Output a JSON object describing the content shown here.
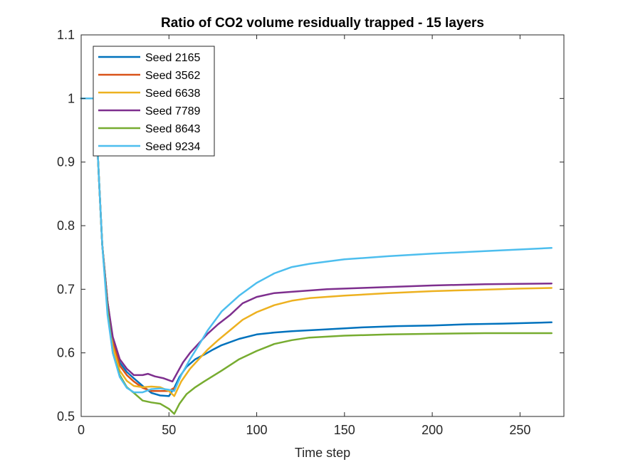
{
  "chart_data": {
    "type": "line",
    "title": "Ratio of CO2 volume residually trapped - 15 layers",
    "xlabel": "Time step",
    "ylabel": "",
    "xlim": [
      0,
      275
    ],
    "ylim": [
      0.5,
      1.1
    ],
    "xticks": [
      0,
      50,
      100,
      150,
      200,
      250
    ],
    "yticks": [
      0.5,
      0.6,
      0.7,
      0.8,
      0.9,
      1,
      1.1
    ],
    "xtick_labels": [
      "0",
      "50",
      "100",
      "150",
      "200",
      "250"
    ],
    "ytick_labels": [
      "0.5",
      "0.6",
      "0.7",
      "0.8",
      "0.9",
      "1",
      "1.1"
    ],
    "grid": false,
    "legend_position": "top-left",
    "series": [
      {
        "name": "Seed 2165",
        "color": "#0072BD",
        "points": [
          [
            0,
            1
          ],
          [
            8,
            1
          ],
          [
            10,
            0.88
          ],
          [
            12,
            0.77
          ],
          [
            15,
            0.68
          ],
          [
            18,
            0.62
          ],
          [
            22,
            0.585
          ],
          [
            26,
            0.57
          ],
          [
            30,
            0.56
          ],
          [
            35,
            0.548
          ],
          [
            40,
            0.537
          ],
          [
            45,
            0.533
          ],
          [
            50,
            0.532
          ],
          [
            53,
            0.545
          ],
          [
            56,
            0.562
          ],
          [
            60,
            0.578
          ],
          [
            65,
            0.59
          ],
          [
            70,
            0.597
          ],
          [
            75,
            0.605
          ],
          [
            80,
            0.612
          ],
          [
            90,
            0.622
          ],
          [
            100,
            0.629
          ],
          [
            110,
            0.632
          ],
          [
            120,
            0.634
          ],
          [
            140,
            0.637
          ],
          [
            160,
            0.64
          ],
          [
            180,
            0.642
          ],
          [
            200,
            0.643
          ],
          [
            220,
            0.645
          ],
          [
            240,
            0.646
          ],
          [
            268,
            0.648
          ]
        ]
      },
      {
        "name": "Seed 3562",
        "color": "#D95319",
        "points": [
          [
            0,
            1
          ],
          [
            8,
            1
          ],
          [
            10,
            0.88
          ],
          [
            12,
            0.77
          ],
          [
            15,
            0.68
          ],
          [
            18,
            0.62
          ],
          [
            22,
            0.58
          ],
          [
            26,
            0.565
          ],
          [
            30,
            0.555
          ],
          [
            35,
            0.545
          ],
          [
            40,
            0.54
          ],
          [
            45,
            0.54
          ],
          [
            50,
            0.54
          ],
          [
            53,
            0.545
          ]
        ]
      },
      {
        "name": "Seed 6638",
        "color": "#EDB120",
        "points": [
          [
            0,
            1
          ],
          [
            8,
            1
          ],
          [
            10,
            0.88
          ],
          [
            12,
            0.77
          ],
          [
            15,
            0.67
          ],
          [
            18,
            0.61
          ],
          [
            22,
            0.572
          ],
          [
            26,
            0.556
          ],
          [
            30,
            0.548
          ],
          [
            35,
            0.546
          ],
          [
            40,
            0.547
          ],
          [
            45,
            0.546
          ],
          [
            50,
            0.54
          ],
          [
            53,
            0.532
          ],
          [
            57,
            0.555
          ],
          [
            62,
            0.575
          ],
          [
            67,
            0.59
          ],
          [
            72,
            0.605
          ],
          [
            78,
            0.62
          ],
          [
            85,
            0.636
          ],
          [
            92,
            0.652
          ],
          [
            100,
            0.664
          ],
          [
            110,
            0.675
          ],
          [
            120,
            0.682
          ],
          [
            130,
            0.686
          ],
          [
            150,
            0.69
          ],
          [
            175,
            0.694
          ],
          [
            200,
            0.697
          ],
          [
            225,
            0.699
          ],
          [
            250,
            0.701
          ],
          [
            268,
            0.702
          ]
        ]
      },
      {
        "name": "Seed 7789",
        "color": "#7E2F8E",
        "points": [
          [
            0,
            1
          ],
          [
            8,
            1
          ],
          [
            10,
            0.88
          ],
          [
            12,
            0.77
          ],
          [
            15,
            0.68
          ],
          [
            18,
            0.625
          ],
          [
            22,
            0.59
          ],
          [
            26,
            0.575
          ],
          [
            30,
            0.565
          ],
          [
            35,
            0.565
          ],
          [
            38,
            0.567
          ],
          [
            42,
            0.563
          ],
          [
            47,
            0.56
          ],
          [
            52,
            0.555
          ],
          [
            55,
            0.57
          ],
          [
            58,
            0.585
          ],
          [
            62,
            0.6
          ],
          [
            67,
            0.615
          ],
          [
            72,
            0.63
          ],
          [
            78,
            0.645
          ],
          [
            85,
            0.66
          ],
          [
            92,
            0.678
          ],
          [
            100,
            0.688
          ],
          [
            110,
            0.694
          ],
          [
            120,
            0.696
          ],
          [
            140,
            0.7
          ],
          [
            160,
            0.702
          ],
          [
            180,
            0.704
          ],
          [
            200,
            0.706
          ],
          [
            230,
            0.708
          ],
          [
            268,
            0.709
          ]
        ]
      },
      {
        "name": "Seed 8643",
        "color": "#77AC30",
        "points": [
          [
            0,
            1
          ],
          [
            8,
            1
          ],
          [
            10,
            0.88
          ],
          [
            12,
            0.77
          ],
          [
            15,
            0.67
          ],
          [
            18,
            0.6
          ],
          [
            22,
            0.565
          ],
          [
            26,
            0.546
          ],
          [
            30,
            0.537
          ],
          [
            35,
            0.525
          ],
          [
            40,
            0.522
          ],
          [
            45,
            0.52
          ],
          [
            50,
            0.512
          ],
          [
            53,
            0.504
          ],
          [
            56,
            0.52
          ],
          [
            60,
            0.535
          ],
          [
            65,
            0.546
          ],
          [
            70,
            0.555
          ],
          [
            80,
            0.572
          ],
          [
            90,
            0.59
          ],
          [
            100,
            0.603
          ],
          [
            110,
            0.614
          ],
          [
            120,
            0.62
          ],
          [
            130,
            0.624
          ],
          [
            150,
            0.627
          ],
          [
            175,
            0.629
          ],
          [
            200,
            0.63
          ],
          [
            230,
            0.631
          ],
          [
            268,
            0.631
          ]
        ]
      },
      {
        "name": "Seed 9234",
        "color": "#4DBEEE",
        "points": [
          [
            0,
            1
          ],
          [
            8,
            1
          ],
          [
            10,
            0.88
          ],
          [
            12,
            0.77
          ],
          [
            15,
            0.66
          ],
          [
            18,
            0.6
          ],
          [
            22,
            0.562
          ],
          [
            26,
            0.545
          ],
          [
            30,
            0.538
          ],
          [
            35,
            0.538
          ],
          [
            40,
            0.543
          ],
          [
            45,
            0.544
          ],
          [
            50,
            0.542
          ],
          [
            53,
            0.54
          ],
          [
            57,
            0.565
          ],
          [
            62,
            0.59
          ],
          [
            67,
            0.612
          ],
          [
            72,
            0.635
          ],
          [
            80,
            0.665
          ],
          [
            90,
            0.69
          ],
          [
            100,
            0.71
          ],
          [
            110,
            0.725
          ],
          [
            120,
            0.735
          ],
          [
            130,
            0.74
          ],
          [
            150,
            0.747
          ],
          [
            175,
            0.752
          ],
          [
            200,
            0.756
          ],
          [
            230,
            0.76
          ],
          [
            268,
            0.765
          ]
        ]
      }
    ]
  }
}
